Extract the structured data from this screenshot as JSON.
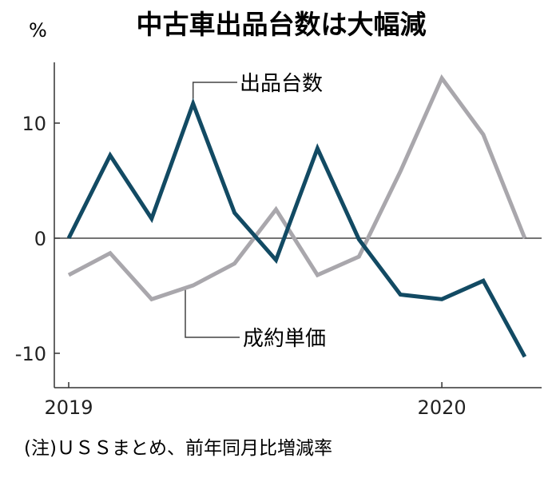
{
  "chart_data": {
    "type": "line",
    "title": "中古車出品台数は大幅減",
    "ylabel": "%",
    "xlabel": "",
    "ylim": [
      -13,
      15
    ],
    "yticks": [
      10,
      0,
      -10
    ],
    "ytick_labels": [
      "10",
      "0",
      "-10"
    ],
    "xtick_labels": [
      {
        "index": 0,
        "label": "2019"
      },
      {
        "index": 9,
        "label": "2020"
      }
    ],
    "grid": false,
    "zero_line": true,
    "series": [
      {
        "name": "出品台数",
        "color": "#124a63",
        "values": [
          0,
          7.2,
          1.7,
          11.7,
          2.2,
          -1.9,
          7.8,
          -0.1,
          -4.9,
          -5.3,
          -3.7,
          -10.3
        ]
      },
      {
        "name": "成約単価",
        "color": "#a9a7ac",
        "values": [
          -3.2,
          -1.3,
          -5.3,
          -4.1,
          -2.2,
          2.5,
          -3.2,
          -1.6,
          5.8,
          13.9,
          9.0,
          0
        ]
      }
    ],
    "note": "(注)ＵＳＳまとめ、前年同月比増減率"
  }
}
